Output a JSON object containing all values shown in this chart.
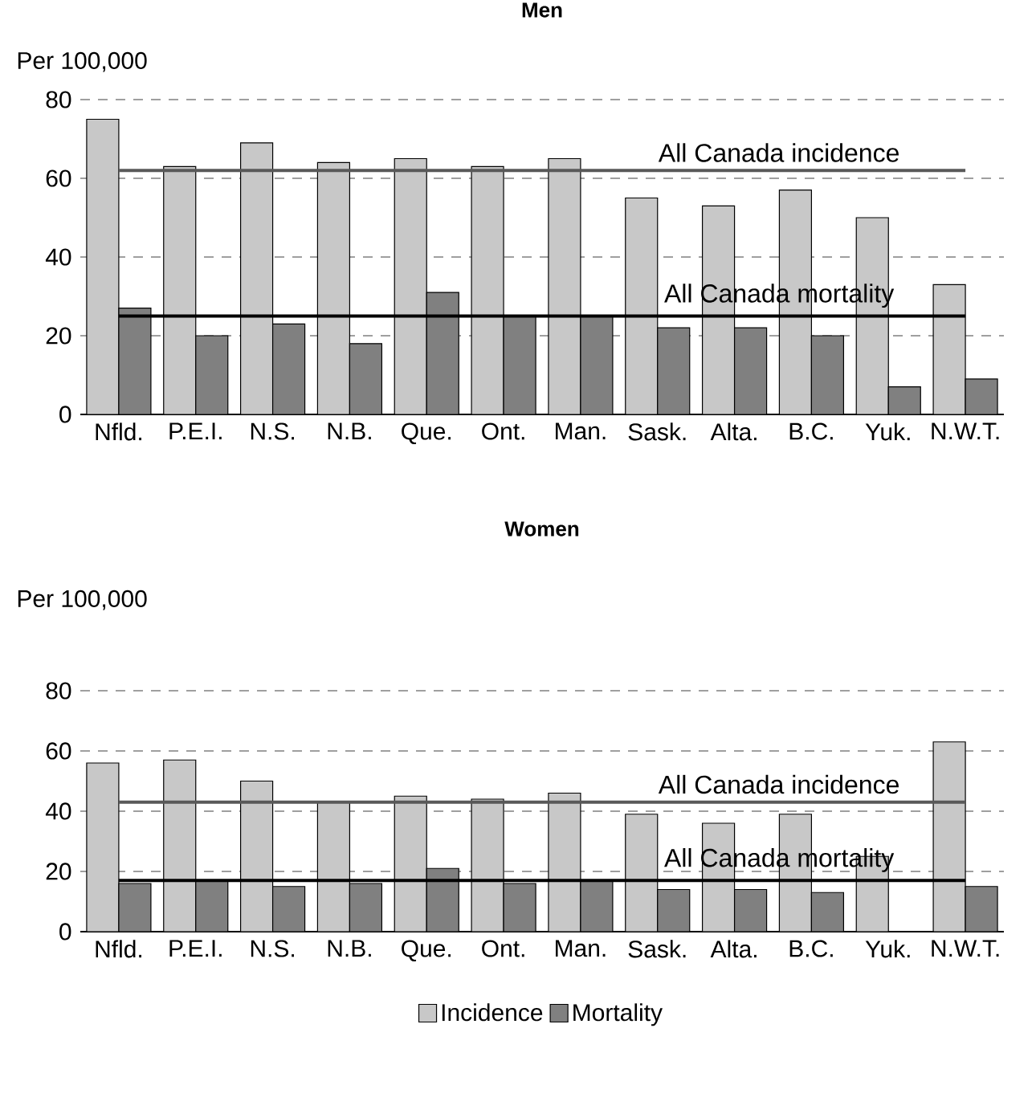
{
  "chart_data": [
    {
      "type": "bar",
      "title": "Men",
      "ylabel": "Per 100,000",
      "categories": [
        "Nfld.",
        "P.E.I.",
        "N.S.",
        "N.B.",
        "Que.",
        "Ont.",
        "Man.",
        "Sask.",
        "Alta.",
        "B.C.",
        "Yuk.",
        "N.W.T."
      ],
      "series": [
        {
          "color": "#c8c8c8",
          "values": [
            75,
            63,
            69,
            64,
            65,
            63,
            65,
            55,
            53,
            57,
            50,
            33
          ]
        },
        {
          "color": "#808080",
          "values": [
            27,
            20,
            23,
            18,
            31,
            25,
            25,
            22,
            22,
            20,
            7,
            9
          ]
        }
      ],
      "ylim": [
        0,
        80
      ],
      "yticks": [
        0,
        20,
        40,
        60,
        80
      ],
      "grid": "y",
      "ref_lines": [
        {
          "axis": "y",
          "value": 62,
          "label": "All Canada incidence",
          "color": "#595959"
        },
        {
          "axis": "y",
          "value": 25,
          "label": "All Canada mortality",
          "color": "#000000"
        }
      ]
    },
    {
      "type": "bar",
      "title": "Women",
      "ylabel": "Per 100,000",
      "categories": [
        "Nfld.",
        "P.E.I.",
        "N.S.",
        "N.B.",
        "Que.",
        "Ont.",
        "Man.",
        "Sask.",
        "Alta.",
        "B.C.",
        "Yuk.",
        "N.W.T."
      ],
      "series": [
        {
          "name": "Incidence",
          "color": "#c8c8c8",
          "values": [
            56,
            57,
            50,
            43,
            45,
            44,
            46,
            39,
            36,
            39,
            25,
            63
          ]
        },
        {
          "name": "Mortality",
          "color": "#808080",
          "values": [
            16,
            17,
            15,
            16,
            21,
            16,
            17,
            14,
            14,
            13,
            null,
            15
          ]
        }
      ],
      "ylim": [
        0,
        80
      ],
      "yticks": [
        0,
        20,
        40,
        60,
        80
      ],
      "grid": "y",
      "legend": "bottom",
      "ref_lines": [
        {
          "axis": "y",
          "value": 43,
          "label": "All Canada incidence",
          "color": "#595959"
        },
        {
          "axis": "y",
          "value": 17,
          "label": "All Canada mortality",
          "color": "#000000"
        }
      ]
    }
  ]
}
